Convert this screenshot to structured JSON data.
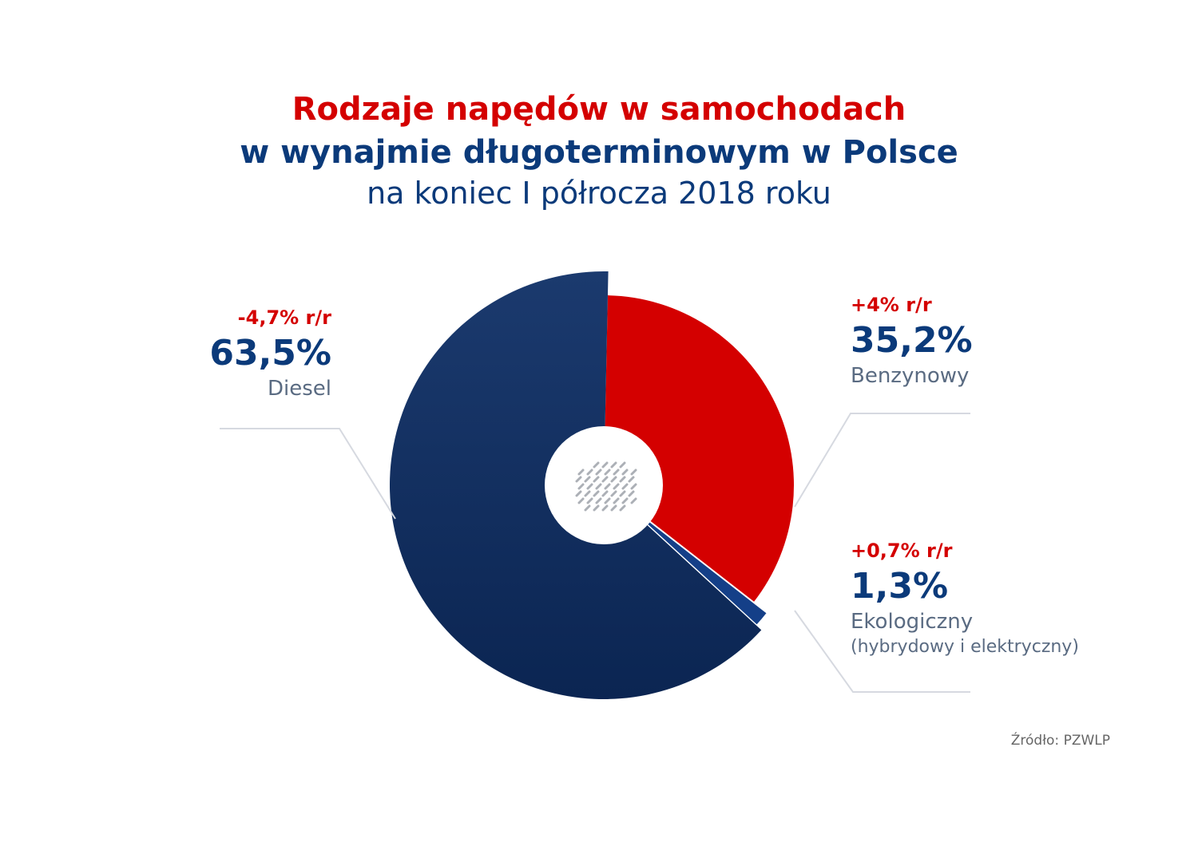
{
  "title_line1": "Rodzaje napędów w samochodach",
  "title_line2": "w wynajmie długoterminowym w Polsce",
  "title_line3": "na koniec I półrocza 2018 roku",
  "source": "Źródło: PZWLP",
  "colors": {
    "diesel": "#0c2a5e",
    "benzyna": "#d40000",
    "eko": "#143f88",
    "title_red": "#d40000",
    "title_blue": "#0b3a7a"
  },
  "chart_data": {
    "type": "pie",
    "slices": [
      {
        "label": "Diesel",
        "value": 63.5,
        "value_label": "63,5%",
        "change": "-4,7% r/r",
        "color": "#0c2a5e"
      },
      {
        "label": "Benzynowy",
        "value": 35.2,
        "value_label": "35,2%",
        "change": "+4% r/r",
        "color": "#d40000"
      },
      {
        "label": "Ekologiczny",
        "sublabel": "(hybrydowy i elektryczny)",
        "value": 1.3,
        "value_label": "1,3%",
        "change": "+0,7% r/r",
        "color": "#143f88"
      }
    ]
  }
}
